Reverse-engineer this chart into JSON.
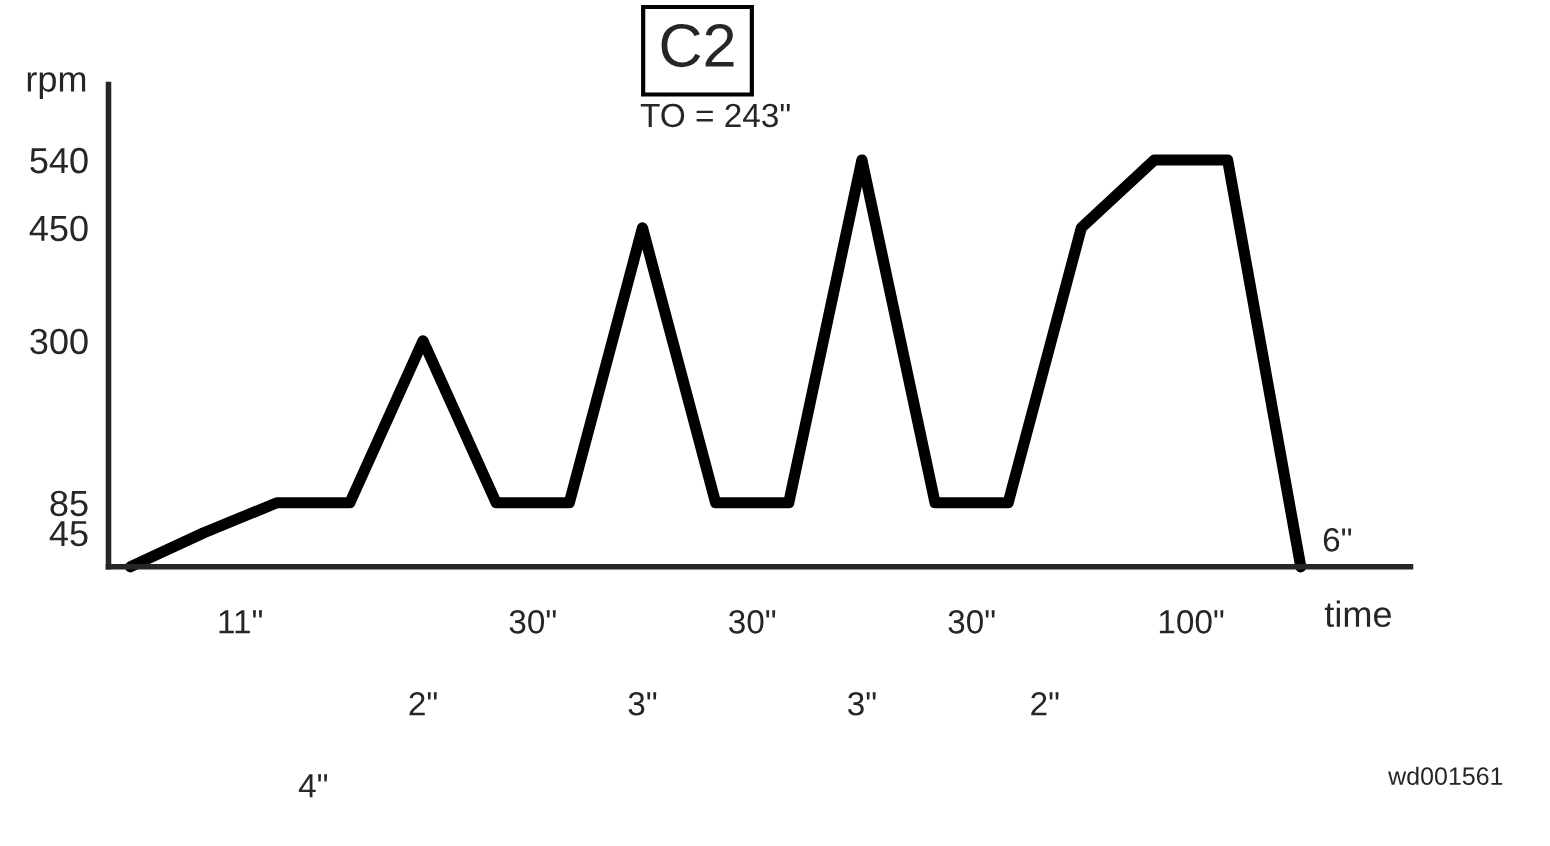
{
  "chart_data": {
    "type": "line",
    "title": "C2",
    "xlabel": "time",
    "ylabel": "rpm",
    "categories": [
      null,
      null,
      null,
      null,
      null,
      null,
      null,
      null,
      null,
      null,
      null,
      null,
      null,
      null,
      null,
      null,
      null
    ],
    "series": [
      {
        "color": "#000000",
        "values": [
          0,
          45,
          85,
          85,
          300,
          85,
          85,
          450,
          85,
          85,
          540,
          85,
          85,
          450,
          540,
          540,
          0
        ]
      }
    ],
    "ylim": [
      0,
      640
    ],
    "yticks": [
      45,
      85,
      300,
      450,
      540
    ],
    "grid": false,
    "legend": false,
    "marker": "none",
    "line_style": "solid",
    "annotations": [
      "TO = 243\"",
      "11\"",
      "4\"",
      "2\"",
      "30\"",
      "3\"",
      "30\"",
      "3\"",
      "30\"",
      "2\"",
      "100\"",
      "6\"",
      "wd001561"
    ]
  }
}
